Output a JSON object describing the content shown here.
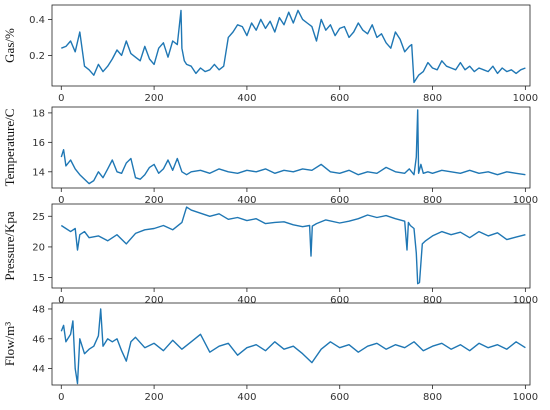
{
  "colors": {
    "line": "#1f77b4",
    "axes": "#222222"
  },
  "chart_data": [
    {
      "type": "line",
      "ylabel": "Gas/%",
      "xlim": [
        -20,
        1010
      ],
      "ylim": [
        0.03,
        0.48
      ],
      "xticks": [
        0,
        200,
        400,
        600,
        800,
        1000
      ],
      "xtick_labels": [
        "0",
        "200",
        "400",
        "600",
        "800",
        "1000"
      ],
      "yticks": [
        0.2,
        0.4
      ],
      "ytick_labels": [
        "0.2",
        "0.4"
      ],
      "grid": false,
      "series": [
        {
          "x": [
            0,
            10,
            20,
            30,
            40,
            50,
            60,
            70,
            80,
            90,
            100,
            110,
            120,
            130,
            140,
            150,
            160,
            170,
            180,
            190,
            200,
            210,
            220,
            230,
            240,
            250,
            258,
            260,
            265,
            270,
            280,
            290,
            300,
            310,
            320,
            330,
            340,
            350,
            360,
            370,
            380,
            390,
            400,
            410,
            420,
            430,
            440,
            450,
            460,
            470,
            480,
            490,
            500,
            510,
            520,
            530,
            540,
            550,
            560,
            570,
            580,
            590,
            600,
            610,
            620,
            630,
            640,
            650,
            660,
            670,
            680,
            690,
            700,
            710,
            720,
            730,
            740,
            750,
            755,
            760,
            770,
            780,
            790,
            800,
            810,
            820,
            830,
            840,
            850,
            860,
            870,
            880,
            890,
            900,
            910,
            920,
            930,
            940,
            950,
            960,
            970,
            980,
            990,
            1000
          ],
          "y": [
            0.24,
            0.25,
            0.28,
            0.22,
            0.33,
            0.14,
            0.12,
            0.09,
            0.15,
            0.11,
            0.14,
            0.18,
            0.23,
            0.2,
            0.28,
            0.21,
            0.19,
            0.17,
            0.25,
            0.18,
            0.15,
            0.24,
            0.27,
            0.19,
            0.28,
            0.26,
            0.45,
            0.24,
            0.17,
            0.15,
            0.14,
            0.1,
            0.13,
            0.11,
            0.12,
            0.15,
            0.12,
            0.14,
            0.3,
            0.33,
            0.37,
            0.36,
            0.31,
            0.38,
            0.34,
            0.4,
            0.35,
            0.39,
            0.33,
            0.41,
            0.37,
            0.44,
            0.38,
            0.45,
            0.4,
            0.38,
            0.36,
            0.28,
            0.4,
            0.34,
            0.37,
            0.31,
            0.35,
            0.36,
            0.3,
            0.33,
            0.38,
            0.34,
            0.32,
            0.37,
            0.3,
            0.32,
            0.27,
            0.24,
            0.33,
            0.29,
            0.22,
            0.25,
            0.26,
            0.05,
            0.09,
            0.11,
            0.16,
            0.13,
            0.12,
            0.17,
            0.14,
            0.13,
            0.12,
            0.16,
            0.12,
            0.14,
            0.11,
            0.13,
            0.12,
            0.11,
            0.14,
            0.1,
            0.13,
            0.11,
            0.12,
            0.1,
            0.12,
            0.13
          ]
        }
      ]
    },
    {
      "type": "line",
      "ylabel": "Temperature/C",
      "xlim": [
        -20,
        1010
      ],
      "ylim": [
        12.9,
        18.4
      ],
      "xticks": [
        0,
        200,
        400,
        600,
        800,
        1000
      ],
      "xtick_labels": [
        "0",
        "200",
        "400",
        "600",
        "800",
        "1000"
      ],
      "yticks": [
        14,
        16,
        18
      ],
      "ytick_labels": [
        "14",
        "16",
        "18"
      ],
      "grid": false,
      "series": [
        {
          "x": [
            0,
            5,
            10,
            20,
            30,
            40,
            50,
            60,
            70,
            80,
            90,
            100,
            110,
            120,
            130,
            140,
            150,
            160,
            170,
            180,
            190,
            200,
            210,
            220,
            230,
            240,
            250,
            260,
            270,
            280,
            300,
            320,
            340,
            360,
            380,
            400,
            420,
            440,
            460,
            480,
            500,
            520,
            540,
            560,
            580,
            600,
            620,
            640,
            660,
            680,
            700,
            720,
            740,
            750,
            760,
            765,
            768,
            770,
            775,
            780,
            790,
            800,
            820,
            840,
            860,
            880,
            900,
            920,
            940,
            960,
            980,
            1000
          ],
          "y": [
            15.0,
            15.5,
            14.4,
            14.8,
            14.2,
            13.8,
            13.5,
            13.2,
            13.4,
            14.0,
            13.6,
            14.2,
            14.8,
            14.0,
            13.9,
            14.6,
            14.9,
            13.6,
            13.5,
            13.8,
            14.3,
            14.5,
            13.9,
            14.2,
            14.8,
            14.1,
            14.9,
            14.0,
            13.8,
            14.0,
            14.1,
            13.9,
            14.2,
            14.0,
            13.9,
            14.1,
            14.0,
            14.2,
            13.9,
            14.1,
            14.0,
            14.2,
            14.1,
            14.5,
            14.0,
            13.9,
            14.1,
            13.8,
            14.0,
            13.9,
            14.3,
            14.0,
            13.9,
            14.2,
            13.8,
            15.0,
            18.2,
            13.9,
            14.5,
            13.9,
            14.0,
            13.9,
            14.1,
            14.0,
            13.9,
            14.1,
            13.9,
            14.0,
            13.8,
            14.0,
            13.9,
            13.8
          ]
        }
      ]
    },
    {
      "type": "line",
      "ylabel": "Pressure/Kpa",
      "xlim": [
        -20,
        1010
      ],
      "ylim": [
        13.3,
        27.0
      ],
      "xticks": [
        0,
        200,
        400,
        600,
        800,
        1000
      ],
      "xtick_labels": [
        "0",
        "200",
        "400",
        "600",
        "800",
        "1000"
      ],
      "yticks": [
        15,
        20,
        25
      ],
      "ytick_labels": [
        "15",
        "20",
        "25"
      ],
      "grid": false,
      "series": [
        {
          "x": [
            0,
            10,
            20,
            30,
            35,
            40,
            50,
            60,
            80,
            100,
            120,
            140,
            160,
            180,
            200,
            220,
            240,
            260,
            270,
            280,
            300,
            320,
            340,
            360,
            380,
            400,
            420,
            440,
            460,
            480,
            500,
            520,
            535,
            538,
            541,
            550,
            570,
            600,
            620,
            640,
            660,
            680,
            700,
            720,
            740,
            745,
            748,
            752,
            760,
            765,
            768,
            772,
            778,
            785,
            800,
            820,
            840,
            860,
            880,
            900,
            920,
            940,
            960,
            980,
            1000
          ],
          "y": [
            23.5,
            23.0,
            22.5,
            23.0,
            19.5,
            22.0,
            22.5,
            21.5,
            21.8,
            21.0,
            22.0,
            20.5,
            22.2,
            22.8,
            23.0,
            23.5,
            22.8,
            24.0,
            26.5,
            26.0,
            25.5,
            25.0,
            25.4,
            24.5,
            24.8,
            24.3,
            24.6,
            23.8,
            24.0,
            24.1,
            23.6,
            23.3,
            23.5,
            18.5,
            23.4,
            23.8,
            24.4,
            23.9,
            24.2,
            24.6,
            25.2,
            24.8,
            25.1,
            24.6,
            24.2,
            19.5,
            24.0,
            23.5,
            23.0,
            19.0,
            14.0,
            14.2,
            20.5,
            21.0,
            21.8,
            22.5,
            22.0,
            22.4,
            21.5,
            22.5,
            21.8,
            22.3,
            21.2,
            21.6,
            22.0
          ]
        }
      ]
    },
    {
      "type": "line",
      "ylabel": "Flow/m³",
      "xlim": [
        -20,
        1010
      ],
      "ylim": [
        42.9,
        48.4
      ],
      "xticks": [
        0,
        200,
        400,
        600,
        800,
        1000
      ],
      "xtick_labels": [
        "0",
        "200",
        "400",
        "600",
        "800",
        "1000"
      ],
      "yticks": [
        44,
        46,
        48
      ],
      "ytick_labels": [
        "44",
        "46",
        "48"
      ],
      "grid": false,
      "series": [
        {
          "x": [
            0,
            5,
            10,
            20,
            25,
            30,
            35,
            40,
            50,
            60,
            70,
            80,
            85,
            90,
            100,
            110,
            120,
            130,
            140,
            150,
            160,
            180,
            200,
            220,
            240,
            260,
            280,
            300,
            320,
            340,
            360,
            380,
            400,
            420,
            440,
            460,
            480,
            500,
            520,
            540,
            560,
            580,
            600,
            620,
            640,
            660,
            680,
            700,
            720,
            740,
            760,
            780,
            800,
            820,
            840,
            860,
            880,
            900,
            920,
            940,
            960,
            980,
            1000
          ],
          "y": [
            46.5,
            46.9,
            45.8,
            46.3,
            47.2,
            44.0,
            43.0,
            46.0,
            45.0,
            45.3,
            45.5,
            46.2,
            48.0,
            45.5,
            46.0,
            45.8,
            46.0,
            45.2,
            44.5,
            45.8,
            46.1,
            45.4,
            45.7,
            45.2,
            45.9,
            45.3,
            45.8,
            46.3,
            45.1,
            45.5,
            45.7,
            44.9,
            45.4,
            45.6,
            45.2,
            45.8,
            45.3,
            45.5,
            45.0,
            44.4,
            45.3,
            45.8,
            45.4,
            45.6,
            45.1,
            45.5,
            45.7,
            45.3,
            45.6,
            45.4,
            45.8,
            45.2,
            45.5,
            45.7,
            45.3,
            45.6,
            45.2,
            45.7,
            45.4,
            45.6,
            45.3,
            45.8,
            45.4
          ]
        }
      ]
    }
  ]
}
